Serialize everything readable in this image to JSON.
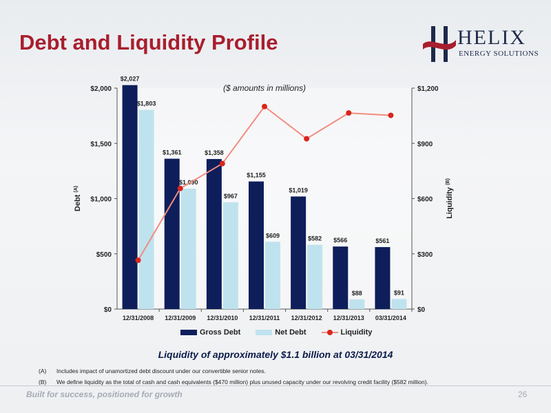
{
  "slide": {
    "title": "Debt and Liquidity Profile",
    "logo_word": "HELIX",
    "logo_sub": "ENERGY SOLUTIONS",
    "headline": "Liquidity of approximately $1.1 billion at 03/31/2014",
    "footnotes": [
      {
        "key": "(A)",
        "text": "Includes impact of unamortized debt discount under our convertible senior notes."
      },
      {
        "key": "(B)",
        "text": "We define liquidity as the total of cash and cash equivalents ($470 million) plus unused capacity under our revolving credit facility ($582 million)."
      }
    ],
    "tagline": "Built for success, positioned for growth",
    "page_number": "26"
  },
  "chart_data": {
    "type": "bar",
    "subtitle": "($ amounts in millions)",
    "categories": [
      "12/31/2008",
      "12/31/2009",
      "12/31/2010",
      "12/31/2011",
      "12/31/2012",
      "12/31/2013",
      "03/31/2014"
    ],
    "series": [
      {
        "name": "Gross Debt",
        "axis": "left",
        "kind": "bar",
        "color": "#0e1e5b",
        "values": [
          2027,
          1361,
          1358,
          1155,
          1019,
          566,
          561
        ],
        "labels": [
          "$2,027",
          "$1,361",
          "$1,358",
          "$1,155",
          "$1,019",
          "$566",
          "$561"
        ]
      },
      {
        "name": "Net Debt",
        "axis": "left",
        "kind": "bar",
        "color": "#bfe3ee",
        "values": [
          1803,
          1090,
          967,
          609,
          582,
          88,
          91
        ],
        "labels": [
          "$1,803",
          "$1,090",
          "$967",
          "$609",
          "$582",
          "$88",
          "$91"
        ]
      },
      {
        "name": "Liquidity",
        "axis": "right",
        "kind": "line",
        "color": "#d9261c",
        "line_color": "#f28b7f",
        "values": [
          265,
          655,
          790,
          1100,
          925,
          1065,
          1052
        ]
      }
    ],
    "y_left": {
      "label": "Debt",
      "label_sup": "(A)",
      "range": [
        0,
        2000
      ],
      "ticks": [
        "$0",
        "$500",
        "$1,000",
        "$1,500",
        "$2,000"
      ]
    },
    "y_right": {
      "label": "Liquidity",
      "label_sup": "(B)",
      "range": [
        0,
        1200
      ],
      "ticks": [
        "$0",
        "$300",
        "$600",
        "$900",
        "$1,200"
      ]
    },
    "grid": false,
    "legend_position": "bottom"
  }
}
